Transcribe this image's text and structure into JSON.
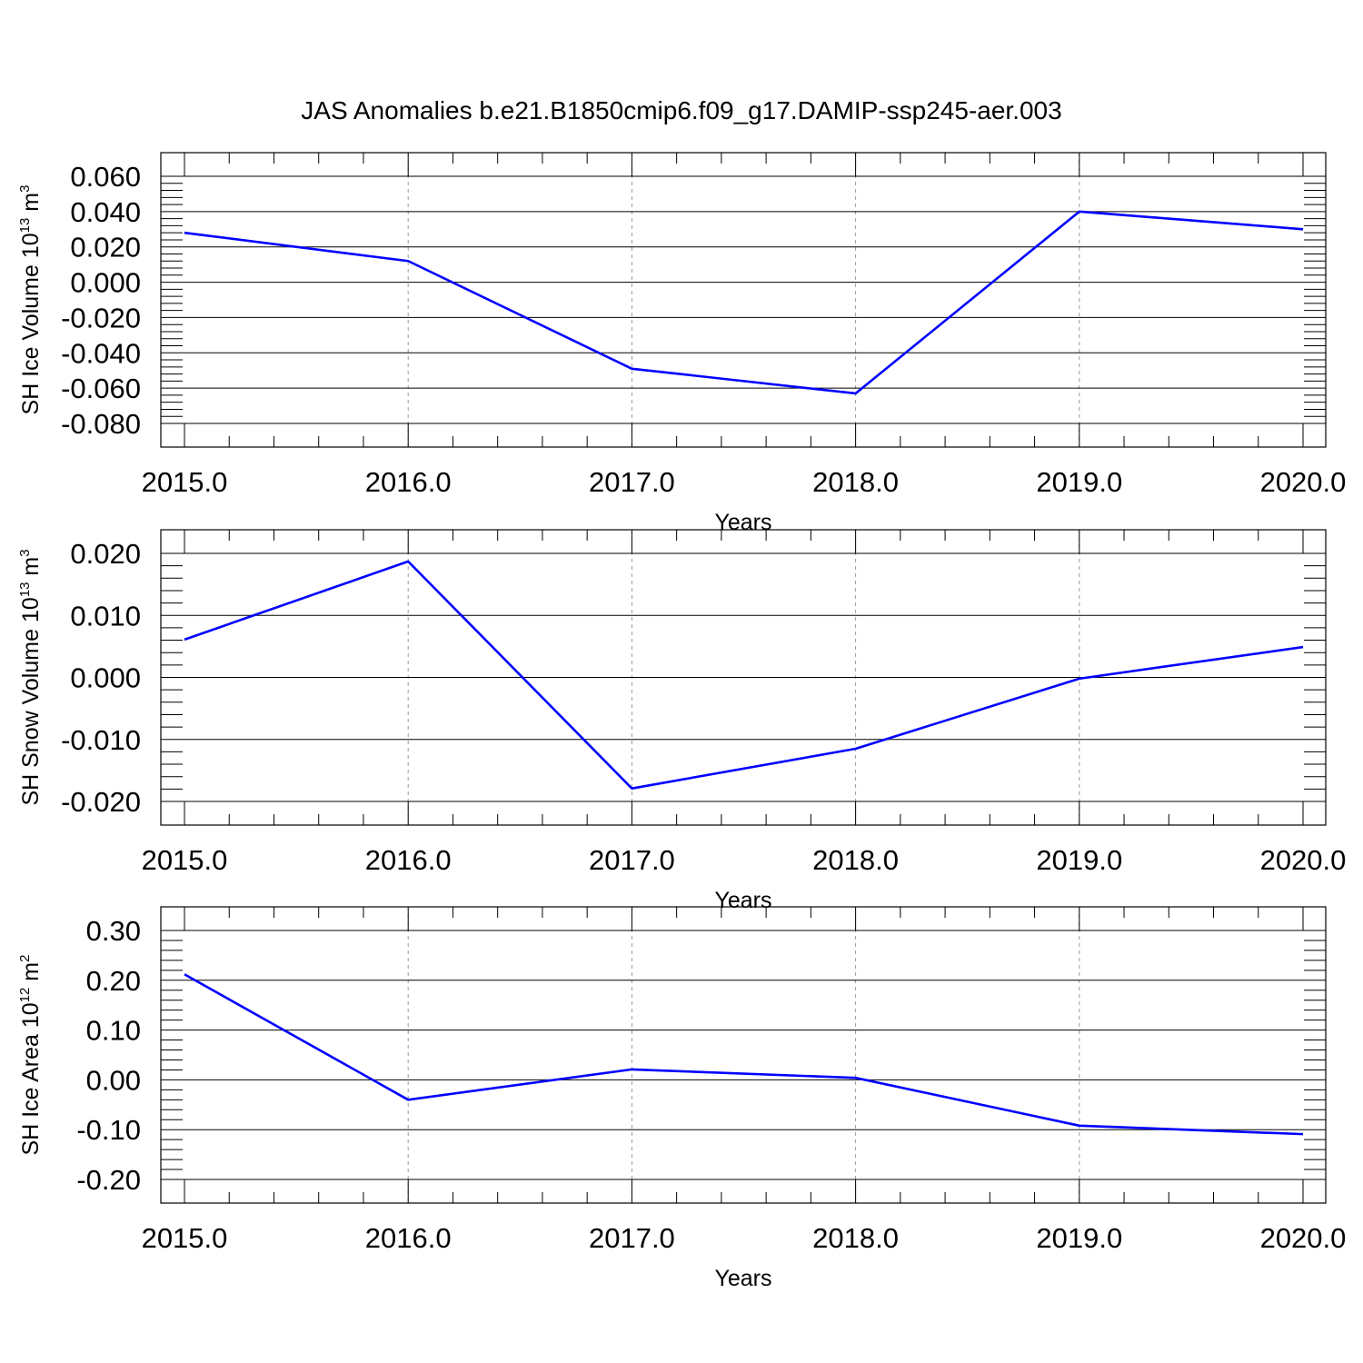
{
  "figure": {
    "title": "JAS Anomalies b.e21.B1850cmip6.f09_g17.DAMIP-ssp245-aer.003",
    "line_color": "#0000ff"
  },
  "chart_data": [
    {
      "type": "line",
      "ylabel": "SH Ice Volume 10",
      "ylabel_exp": "13",
      "ylabel_unit": " m",
      "ylabel_unit_exp": "3",
      "xlabel": "Years",
      "x": [
        2015.0,
        2016.0,
        2017.0,
        2018.0,
        2019.0,
        2020.0
      ],
      "xticks": [
        "2015.0",
        "2016.0",
        "2017.0",
        "2018.0",
        "2019.0",
        "2020.0"
      ],
      "y": [
        0.028,
        0.012,
        -0.049,
        -0.063,
        0.04,
        0.03
      ],
      "ylim": [
        -0.08,
        0.06
      ],
      "yticks": [
        0.06,
        0.04,
        0.02,
        0.0,
        -0.02,
        -0.04,
        -0.06,
        -0.08
      ],
      "yticklabels": [
        "0.060",
        "0.040",
        "0.020",
        "0.000",
        "-0.020",
        "-0.040",
        "-0.060",
        "-0.080"
      ],
      "grid": "vertical dashed at major x ticks"
    },
    {
      "type": "line",
      "ylabel": "SH Snow Volume 10",
      "ylabel_exp": "13",
      "ylabel_unit": " m",
      "ylabel_unit_exp": "3",
      "xlabel": "Years",
      "x": [
        2015.0,
        2016.0,
        2017.0,
        2018.0,
        2019.0,
        2020.0
      ],
      "xticks": [
        "2015.0",
        "2016.0",
        "2017.0",
        "2018.0",
        "2019.0",
        "2020.0"
      ],
      "y": [
        0.0061,
        0.0187,
        -0.0179,
        -0.0115,
        -0.0002,
        0.0049
      ],
      "ylim": [
        -0.02,
        0.02
      ],
      "yticks": [
        0.02,
        0.01,
        0.0,
        -0.01,
        -0.02
      ],
      "yticklabels": [
        "0.020",
        "0.010",
        "0.000",
        "-0.010",
        "-0.020"
      ],
      "grid": "vertical dashed at major x ticks"
    },
    {
      "type": "line",
      "ylabel": "SH Ice Area 10",
      "ylabel_exp": "12",
      "ylabel_unit": " m",
      "ylabel_unit_exp": "2",
      "xlabel": "Years",
      "x": [
        2015.0,
        2016.0,
        2017.0,
        2018.0,
        2019.0,
        2020.0
      ],
      "xticks": [
        "2015.0",
        "2016.0",
        "2017.0",
        "2018.0",
        "2019.0",
        "2020.0"
      ],
      "y": [
        0.212,
        -0.04,
        0.021,
        0.004,
        -0.092,
        -0.109
      ],
      "ylim": [
        -0.2,
        0.3
      ],
      "yticks": [
        0.3,
        0.2,
        0.1,
        0.0,
        -0.1,
        -0.2
      ],
      "yticklabels": [
        "0.30",
        "0.20",
        "0.10",
        "0.00",
        "-0.10",
        "-0.20"
      ],
      "grid": "vertical dashed at major x ticks"
    }
  ]
}
